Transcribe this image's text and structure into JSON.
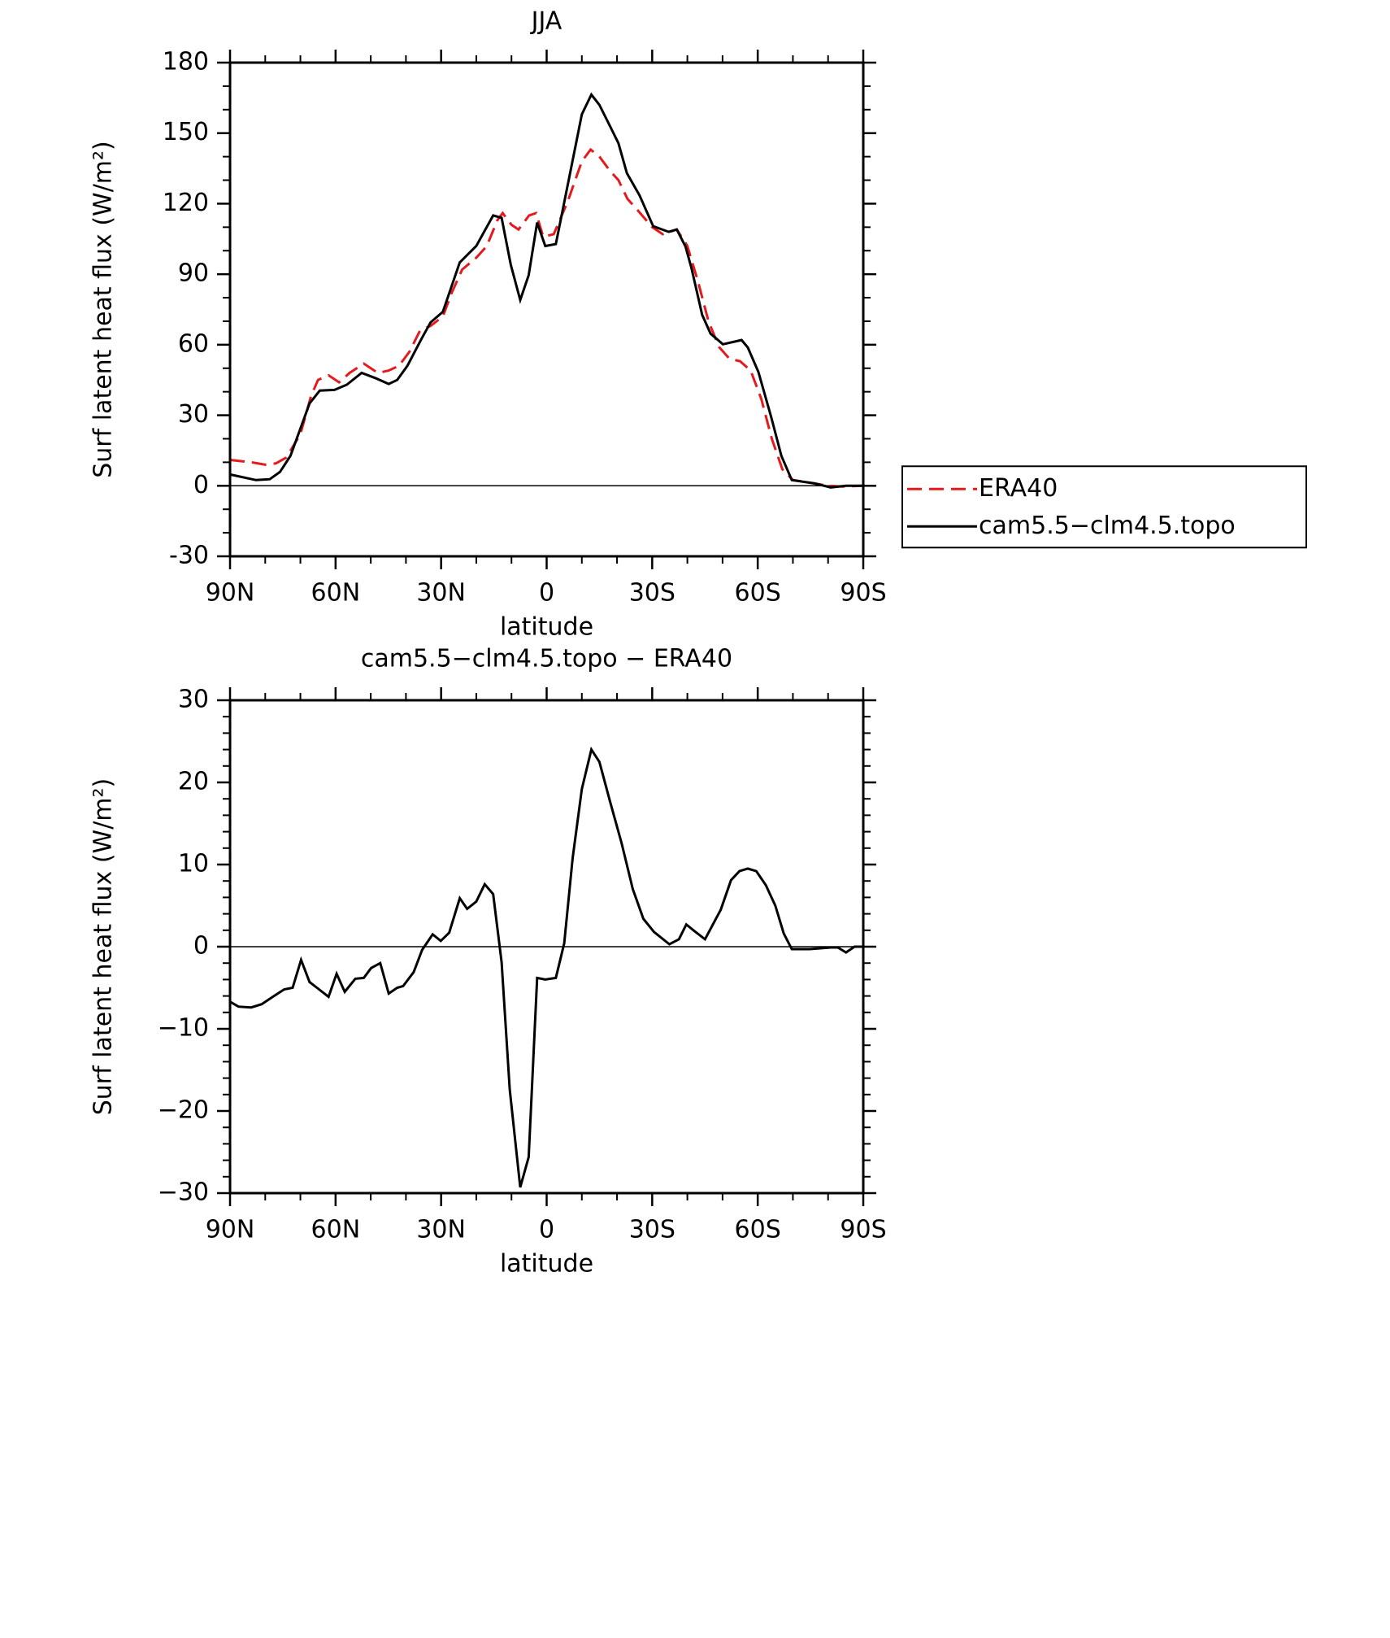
{
  "chart_data": [
    {
      "type": "line",
      "title": "JJA",
      "xlabel": "latitude",
      "ylabel": "Surf latent heat flux (W/m²)",
      "xlim": [
        90,
        -90
      ],
      "xticks": [
        {
          "value": 90,
          "label": "90N"
        },
        {
          "value": 60,
          "label": "60N"
        },
        {
          "value": 30,
          "label": "30N"
        },
        0,
        {
          "value": -30,
          "label": "30S"
        },
        {
          "value": -60,
          "label": "60S"
        },
        {
          "value": -90,
          "label": "90S"
        }
      ],
      "ylim": [
        -30,
        180
      ],
      "yticks": [
        -30,
        0,
        30,
        60,
        90,
        120,
        150,
        180
      ],
      "legend": "right",
      "series": [
        {
          "name": "ERA40",
          "color": "#e41a1c",
          "dash": true,
          "x": [
            90,
            84,
            80,
            77,
            74,
            70,
            67,
            65,
            62,
            59,
            56,
            52,
            48,
            45,
            42,
            39,
            36,
            33,
            29.5,
            27,
            24,
            20,
            17,
            14,
            12.5,
            10,
            8,
            5,
            3,
            1,
            -2,
            -6,
            -10,
            -12.5,
            -15,
            -18,
            -20.4,
            -23,
            -26,
            -30,
            -33,
            -37,
            -40,
            -43,
            -46,
            -49,
            -52,
            -55,
            -58,
            -61,
            -64,
            -67,
            -70,
            -76,
            -80,
            -84,
            -90
          ],
          "values": [
            11,
            10,
            9,
            9.5,
            12,
            22,
            38,
            45,
            47,
            44,
            48,
            52,
            48,
            49,
            51,
            57,
            66,
            68,
            72,
            82,
            92,
            97,
            102,
            113,
            116,
            111,
            109,
            115,
            116,
            106,
            107,
            121,
            138,
            143,
            140,
            134,
            130,
            122,
            117,
            110,
            107,
            109,
            102,
            87,
            70,
            59,
            54,
            53,
            49,
            37,
            20,
            7,
            2.5,
            1,
            0,
            -0.3,
            0
          ]
        },
        {
          "name": "cam5.5−clm4.5.topo",
          "color": "#000000",
          "dash": false,
          "x": [
            90,
            82.6,
            78.7,
            75.8,
            72.8,
            67.4,
            64.5,
            60.3,
            56.8,
            52.6,
            48.5,
            44.9,
            42.5,
            39.6,
            35.4,
            33,
            29.5,
            24.7,
            20,
            15.2,
            12.8,
            10.2,
            7.5,
            5.1,
            2.7,
            0.4,
            -2.6,
            -6.4,
            -10,
            -12.7,
            -15,
            -18,
            -20.4,
            -22.8,
            -26.4,
            -30.3,
            -34.7,
            -37,
            -39.5,
            -41.2,
            -44.2,
            -46.6,
            -50.1,
            -55.4,
            -57.2,
            -60.2,
            -63.8,
            -66.7,
            -69.7,
            -76.2,
            -80.7,
            -85.1,
            -90
          ],
          "values": [
            4.8,
            2.4,
            2.8,
            5.9,
            12.8,
            35,
            40.5,
            40.8,
            43,
            48,
            45.7,
            43.3,
            45,
            51,
            63,
            69.5,
            74,
            95,
            102,
            115,
            114,
            94,
            79,
            89.6,
            112,
            102,
            102.8,
            131,
            158,
            166.4,
            162,
            153,
            145.7,
            133,
            123.5,
            110.4,
            108,
            109,
            101.7,
            92.4,
            72.7,
            64.7,
            60.2,
            62,
            58.8,
            48.4,
            29.4,
            12.8,
            2.4,
            1,
            -0.7,
            0,
            0
          ]
        }
      ]
    },
    {
      "type": "line",
      "title": "cam5.5−clm4.5.topo − ERA40",
      "xlabel": "latitude",
      "ylabel": "Surf latent heat flux (W/m²)",
      "xlim": [
        90,
        -90
      ],
      "xticks": [
        {
          "value": 90,
          "label": "90N"
        },
        {
          "value": 60,
          "label": "60N"
        },
        {
          "value": 30,
          "label": "30N"
        },
        0,
        {
          "value": -30,
          "label": "30S"
        },
        {
          "value": -60,
          "label": "60S"
        },
        {
          "value": -90,
          "label": "90S"
        }
      ],
      "ylim": [
        -30,
        30
      ],
      "yticks": [
        {
          "value": -30,
          "label": "−30"
        },
        {
          "value": -20,
          "label": "−20"
        },
        {
          "value": -10,
          "label": "−10"
        },
        0,
        10,
        20,
        30
      ],
      "series": [
        {
          "color": "#000000",
          "dash": false,
          "x": [
            90,
            87.6,
            84,
            81,
            77.5,
            74.6,
            72.2,
            69.8,
            67.4,
            65,
            62,
            59.7,
            57.4,
            54.4,
            52,
            49.9,
            47.3,
            44.9,
            42.5,
            40.8,
            37.8,
            35.4,
            32.4,
            30.1,
            27.7,
            24.7,
            22.6,
            20,
            17.6,
            15.2,
            12.8,
            10.5,
            7.5,
            5.1,
            2.7,
            0.4,
            -2.6,
            -5,
            -7.4,
            -10,
            -12.7,
            -15,
            -18,
            -21.3,
            -24.5,
            -27.5,
            -30.5,
            -34.9,
            -37.6,
            -39.7,
            -42,
            -45,
            -49.5,
            -52.4,
            -54.8,
            -57.2,
            -59.6,
            -62.3,
            -65,
            -67.4,
            -69.7,
            -74.8,
            -80.7,
            -82.8,
            -85.1,
            -87.5,
            -90
          ],
          "values": [
            -6.7,
            -7.3,
            -7.4,
            -7,
            -6,
            -5.2,
            -5,
            -1.6,
            -4.3,
            -5.1,
            -6.1,
            -3.3,
            -5.5,
            -3.9,
            -3.8,
            -2.6,
            -2,
            -5.7,
            -5,
            -4.8,
            -3.1,
            -0.4,
            1.5,
            0.7,
            1.7,
            5.9,
            4.6,
            5.5,
            7.6,
            6.4,
            -1.9,
            -17.4,
            -29.3,
            -25.6,
            -3.8,
            -4,
            -3.8,
            0.4,
            10.8,
            19.2,
            24,
            22.5,
            17.7,
            12.6,
            7,
            3.4,
            1.8,
            0.3,
            0.9,
            2.7,
            1.9,
            0.9,
            4.5,
            8.1,
            9.2,
            9.5,
            9.2,
            7.5,
            5,
            1.6,
            -0.3,
            -0.3,
            -0.1,
            -0.1,
            -0.7,
            0,
            0
          ]
        }
      ]
    }
  ]
}
